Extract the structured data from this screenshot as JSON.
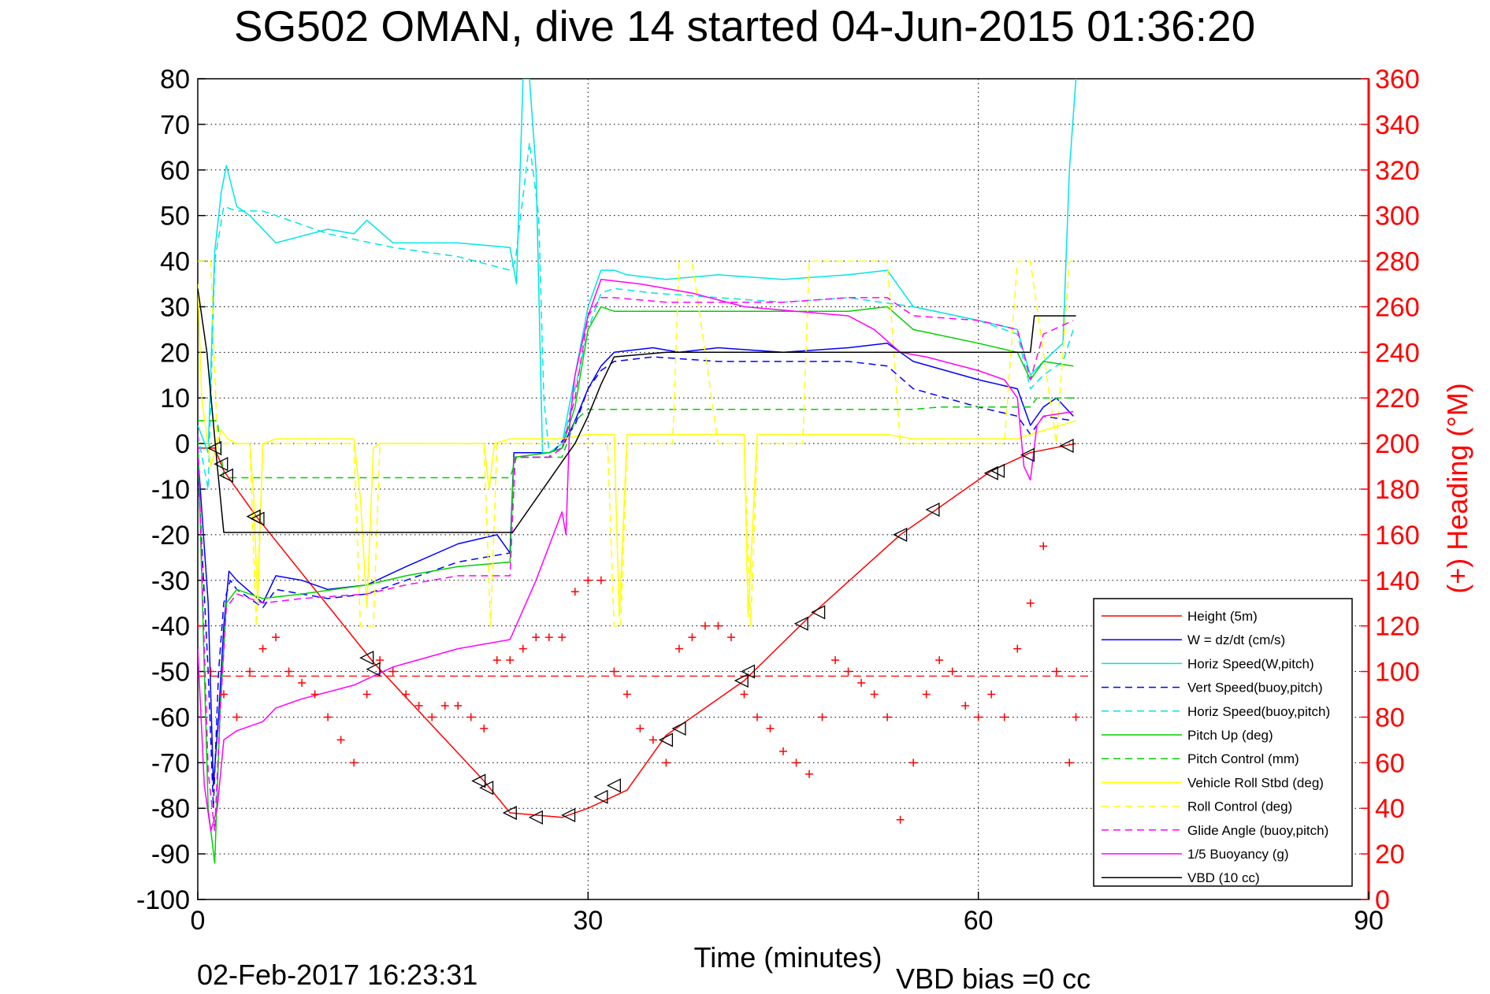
{
  "chart_data": {
    "type": "line",
    "title": "SG502 OMAN, dive 14 started 04-Jun-2015 01:36:20",
    "xlabel": "Time (minutes)",
    "ylabel": "",
    "y2label": "(+) Heading (°M)",
    "xlim": [
      0,
      90
    ],
    "ylim": [
      -100,
      80
    ],
    "y2lim": [
      0,
      360
    ],
    "xticks": [
      "0",
      "30",
      "60",
      "90"
    ],
    "yticks": [
      "80",
      "70",
      "60",
      "50",
      "40",
      "30",
      "20",
      "10",
      "0",
      "-10",
      "-20",
      "-30",
      "-40",
      "-50",
      "-60",
      "-70",
      "-80",
      "-90",
      "-100"
    ],
    "y2ticks": [
      "360",
      "340",
      "320",
      "300",
      "280",
      "260",
      "240",
      "220",
      "200",
      "180",
      "160",
      "140",
      "120",
      "100",
      "80",
      "60",
      "40",
      "20",
      "0"
    ],
    "grid": true,
    "legend_position": "bottom-right",
    "footer_left": "02-Feb-2017 16:23:31",
    "footer_right": "VBD bias =0 cc",
    "colors": {
      "red": "#ff0000",
      "blue": "#0000ff",
      "cyan": "#00e5e5",
      "green": "#00d000",
      "yellow": "#ffff00",
      "magenta": "#ff00ff",
      "black": "#000000"
    },
    "series": [
      {
        "name": "Height (5m)",
        "color": "#ff0000",
        "style": "solid",
        "x": [
          0,
          1.3,
          2,
          4.5,
          13.5,
          22,
          24,
          28,
          30,
          33,
          36,
          42,
          47,
          54,
          57,
          61,
          64,
          67.5
        ],
        "y": [
          -1,
          -1,
          -6,
          -16,
          -48,
          -74,
          -81,
          -82,
          -80,
          -76,
          -64,
          -52,
          -38,
          -20,
          -14,
          -6,
          -2,
          0
        ]
      },
      {
        "name": "W = dz/dt (cm/s)",
        "color": "#0000ff",
        "style": "solid",
        "x": [
          0,
          0.8,
          1.2,
          1.6,
          2.0,
          2.4,
          3,
          5,
          6,
          8,
          10,
          13,
          16,
          20,
          23,
          24,
          24.3,
          26,
          27,
          28,
          29,
          30,
          31,
          32,
          35,
          37,
          40,
          45,
          50,
          53,
          55,
          60,
          63,
          64,
          65,
          66,
          67.3
        ],
        "y": [
          -2,
          -35,
          -75,
          -60,
          -40,
          -28,
          -30,
          -35,
          -29,
          -30,
          -32,
          -31,
          -27,
          -22,
          -20,
          -24,
          -2,
          -2,
          -2,
          -1,
          5,
          12,
          17,
          20,
          21,
          20,
          21,
          20,
          21,
          22,
          18,
          14,
          12,
          4,
          8,
          10,
          6
        ]
      },
      {
        "name": "Horiz Speed(W,pitch)",
        "color": "#00e5e5",
        "style": "solid",
        "x": [
          0,
          0.8,
          1.3,
          1.8,
          2.2,
          3,
          4,
          6,
          10,
          12,
          13,
          15,
          20,
          24,
          24.5,
          25,
          25.5,
          26,
          26.5,
          27,
          28,
          30,
          31,
          32,
          33,
          36,
          40,
          45,
          50,
          53,
          55,
          60,
          63,
          64,
          65,
          66.5,
          67,
          67.5
        ],
        "y": [
          4,
          -2,
          42,
          55,
          61,
          52,
          50,
          44,
          47,
          46,
          49,
          44,
          44,
          43,
          35,
          80,
          80,
          60,
          -2,
          -2,
          0,
          30,
          38,
          38,
          37,
          36,
          37,
          36,
          37,
          38,
          30,
          27,
          25,
          15,
          18,
          22,
          60,
          80
        ]
      },
      {
        "name": "Vert Speed(buoy,pitch)",
        "color": "#0000ff",
        "style": "dashed",
        "x": [
          0,
          0.8,
          1.2,
          1.6,
          2.0,
          2.5,
          3,
          5,
          6,
          10,
          13,
          16,
          20,
          24,
          24.3,
          27,
          29,
          30,
          31,
          32,
          35,
          40,
          45,
          50,
          53,
          55,
          60,
          63,
          64,
          65,
          67.3
        ],
        "y": [
          -5,
          -50,
          -80,
          -50,
          -35,
          -30,
          -32,
          -36,
          -32,
          -34,
          -33,
          -30,
          -26,
          -24,
          -3,
          -3,
          4,
          12,
          16,
          18,
          19,
          18,
          18,
          18,
          17,
          12,
          8,
          6,
          2,
          6,
          5
        ]
      },
      {
        "name": "Horiz Speed(buoy,pitch)",
        "color": "#00e5e5",
        "style": "dashed",
        "x": [
          0,
          0.8,
          1.3,
          2,
          3,
          5,
          10,
          15,
          20,
          24,
          24.4,
          25.5,
          26.2,
          26.6,
          27,
          28,
          30,
          31,
          32,
          35,
          40,
          45,
          50,
          55,
          60,
          63,
          64,
          65,
          66.5,
          67.3
        ],
        "y": [
          2,
          -10,
          40,
          52,
          51,
          51,
          46,
          43,
          41,
          38,
          40,
          66,
          50,
          10,
          -2,
          -1,
          25,
          33,
          34,
          33,
          32,
          31,
          32,
          30,
          27,
          24,
          12,
          15,
          18,
          25
        ]
      },
      {
        "name": "Pitch Up (deg)",
        "color": "#00d000",
        "style": "solid",
        "x": [
          0,
          0.8,
          1.3,
          1.7,
          2.2,
          3,
          5,
          8,
          13,
          16,
          20,
          24,
          24.3,
          27,
          28,
          29,
          30,
          31,
          32,
          36,
          40,
          45,
          50,
          53,
          55,
          60,
          63,
          64,
          65,
          67.3
        ],
        "y": [
          2,
          -80,
          -92,
          -60,
          -35,
          -32,
          -34,
          -33,
          -31,
          -29,
          -27,
          -26,
          -3,
          -2,
          -1,
          8,
          25,
          30,
          29,
          29,
          29,
          29,
          29,
          30,
          25,
          22,
          20,
          14,
          18,
          17
        ]
      },
      {
        "name": "Pitch Control (mm)",
        "color": "#00d000",
        "style": "dashed",
        "x": [
          0,
          1.5,
          2,
          24,
          24.5,
          28,
          29,
          30,
          31,
          40,
          45,
          50,
          55,
          57,
          60,
          64,
          64.5,
          67.5
        ],
        "y": [
          5,
          5,
          -7.5,
          -7.5,
          -3,
          -3,
          5,
          7.5,
          7.5,
          7.5,
          7.5,
          7.5,
          7.5,
          8,
          8,
          8,
          10,
          10
        ]
      },
      {
        "name": "Vehicle Roll Stbd (deg)",
        "color": "#ffff00",
        "style": "solid",
        "x": [
          0,
          0.3,
          1,
          1.8,
          2.3,
          3,
          4,
          4.3,
          4.6,
          5,
          6,
          12,
          12.5,
          13,
          13.5,
          14,
          20,
          22,
          22.4,
          22.8,
          24,
          28,
          30,
          32,
          32.4,
          33,
          36,
          40,
          42,
          42.3,
          43,
          46,
          50,
          53,
          55,
          57,
          60,
          63,
          64,
          67.5
        ],
        "y": [
          35,
          10,
          -5,
          3,
          1,
          0,
          0,
          -12,
          -35,
          0,
          1,
          1,
          -12,
          -36,
          -1,
          0,
          0,
          0,
          -10,
          0,
          1,
          1,
          2,
          2,
          -38,
          2,
          2,
          2,
          2,
          -38,
          2,
          2,
          2,
          2,
          1,
          1,
          1,
          1,
          2,
          5
        ]
      },
      {
        "name": "Roll Control (deg)",
        "color": "#ffff00",
        "style": "dashed",
        "x": [
          0,
          1,
          1.5,
          2,
          4,
          4.5,
          5,
          12,
          12.5,
          13.5,
          14,
          22,
          22.5,
          23,
          24,
          29,
          31.5,
          32,
          32.5,
          33,
          36.5,
          37,
          38,
          40,
          42,
          42.5,
          43,
          46.5,
          47,
          48,
          53,
          54,
          57,
          58,
          62,
          63,
          64,
          66,
          67,
          67.5
        ],
        "y": [
          40,
          40,
          0,
          0,
          0,
          -40,
          0,
          0,
          -40,
          -40,
          0,
          0,
          -40,
          0,
          0,
          0,
          0,
          -40,
          -40,
          0,
          0,
          40,
          40,
          0,
          0,
          -40,
          0,
          0,
          40,
          40,
          40,
          0,
          0,
          0,
          0,
          40,
          40,
          0,
          40,
          40
        ]
      },
      {
        "name": "Glide Angle (buoy,pitch)",
        "color": "#ff00ff",
        "style": "dashed",
        "x": [
          0,
          0.8,
          1.3,
          1.7,
          2.2,
          3,
          5,
          8,
          13,
          16,
          20,
          24,
          24.4,
          27,
          28,
          29,
          30,
          31,
          32,
          36,
          40,
          45,
          50,
          53,
          55,
          60,
          63,
          64,
          65,
          67.3
        ],
        "y": [
          2,
          -72,
          -85,
          -60,
          -36,
          -33,
          -35,
          -34,
          -33,
          -31,
          -29,
          -29,
          -3,
          -3,
          -1,
          10,
          28,
          32,
          32,
          31,
          31,
          31,
          32,
          32,
          28,
          27,
          25,
          14,
          24,
          27
        ]
      },
      {
        "name": "1/5 Buoyancy (g)",
        "color": "#ff00ff",
        "style": "solid",
        "x": [
          0,
          0.5,
          1,
          1.5,
          2,
          3,
          5,
          6,
          8,
          12,
          15,
          20,
          24,
          26,
          28,
          28.3,
          28.6,
          29,
          30,
          31,
          34,
          38,
          42,
          46,
          50,
          52,
          54,
          56,
          60,
          62,
          63,
          63.5,
          64,
          64.5,
          65,
          67.3
        ],
        "y": [
          -45,
          -75,
          -85,
          -80,
          -65,
          -63,
          -61,
          -58,
          -56,
          -53,
          -49,
          -45,
          -43,
          -30,
          -15,
          -20,
          5,
          15,
          28,
          36,
          35,
          33,
          30,
          29,
          28,
          25,
          20,
          19,
          16,
          14,
          10,
          -5,
          -8,
          4,
          6,
          7
        ]
      },
      {
        "name": "VBD (10 cc)",
        "color": "#000000",
        "style": "solid",
        "x": [
          0,
          0.7,
          1.5,
          2,
          24,
          24.2,
          28,
          29,
          30,
          31,
          32,
          36,
          40,
          45,
          50,
          55,
          60,
          64,
          64.3,
          66,
          67.5
        ],
        "y": [
          34,
          20,
          -5,
          -19.5,
          -19.5,
          -19.5,
          -4,
          0,
          6,
          13,
          19,
          20,
          20,
          20,
          20,
          20,
          20,
          20,
          28,
          28,
          28
        ]
      }
    ],
    "markers": {
      "heading": {
        "color": "#ff0000",
        "axis": "right",
        "x": [
          0,
          1,
          2,
          3,
          4,
          5,
          6,
          7,
          8,
          9,
          10,
          11,
          12,
          13,
          14,
          15,
          16,
          17,
          18,
          19,
          20,
          21,
          22,
          23,
          24,
          25,
          26,
          27,
          28,
          29,
          30,
          31,
          32,
          33,
          34,
          35,
          36,
          37,
          38,
          39,
          40,
          41,
          42,
          43,
          44,
          45,
          46,
          47,
          48,
          49,
          50,
          51,
          52,
          53,
          54,
          55,
          56,
          57,
          58,
          59,
          60,
          61,
          62,
          63,
          64,
          65,
          66,
          67,
          67.5
        ],
        "y": [
          120,
          100,
          90,
          80,
          100,
          110,
          115,
          100,
          95,
          90,
          80,
          70,
          60,
          90,
          105,
          100,
          90,
          85,
          80,
          85,
          85,
          80,
          75,
          105,
          105,
          110,
          115,
          115,
          115,
          135,
          140,
          140,
          100,
          90,
          75,
          70,
          60,
          110,
          115,
          120,
          120,
          115,
          90,
          80,
          75,
          65,
          60,
          55,
          80,
          105,
          100,
          95,
          90,
          80,
          35,
          60,
          90,
          105,
          100,
          85,
          80,
          90,
          80,
          110,
          130,
          155,
          100,
          60,
          80
        ]
      },
      "heading_reference": {
        "color": "#ff0000",
        "axis": "right",
        "style": "dashed",
        "y": 98
      },
      "depth_triangles": {
        "color": "#000000",
        "style": "open-triangle",
        "x": [
          1.3,
          1.8,
          2.2,
          4.3,
          4.6,
          13,
          13.5,
          21.6,
          22.2,
          24,
          26,
          28.5,
          31,
          32,
          36,
          37,
          41.8,
          42.3,
          46.4,
          47.7,
          54,
          56.5,
          61,
          61.5,
          63.8,
          66.8
        ],
        "y": [
          -1,
          -4.5,
          -7,
          -16,
          -16.5,
          -47,
          -49.5,
          -74,
          -75.5,
          -81,
          -82,
          -81.5,
          -77.5,
          -75,
          -65,
          -62.5,
          -52,
          -50,
          -39.5,
          -37,
          -20,
          -14.5,
          -6.5,
          -6,
          -2.5,
          -0.5
        ]
      }
    }
  }
}
